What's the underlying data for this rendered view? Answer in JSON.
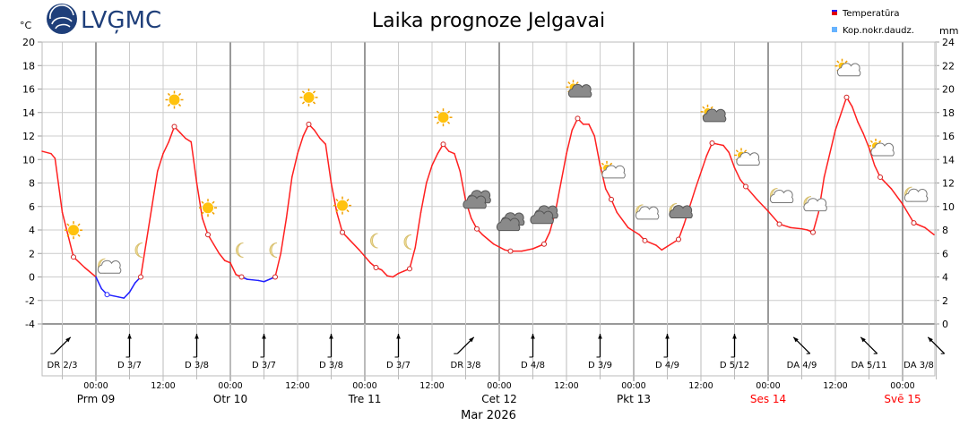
{
  "chart_data": {
    "type": "line",
    "title": "Laika prognoze Jelgavai",
    "logo_text": "LVĢMC",
    "y_left_unit": "°C",
    "y_right_unit": "mm",
    "ylim": [
      -4,
      20
    ],
    "ylim_right": [
      0,
      24
    ],
    "y_ticks": [
      -4,
      -2,
      0,
      2,
      4,
      6,
      8,
      10,
      12,
      14,
      16,
      18,
      20
    ],
    "y_right_ticks": [
      0,
      2,
      4,
      6,
      8,
      10,
      12,
      14,
      16,
      18,
      20,
      22,
      24
    ],
    "grid": true,
    "legend_position": "top-right",
    "legend": [
      {
        "label": "Temperatūra",
        "color": "#e00000"
      },
      {
        "label": "Kop.nokr.daudz.",
        "color": "#66b3ff"
      }
    ],
    "colors": {
      "temp_positive": "#ff2020",
      "temp_negative": "#2020ff"
    },
    "x_unit_note": "hours relative to Mar 9 00:00",
    "temperature": [
      [
        -9.6,
        10.7
      ],
      [
        -8,
        10.5
      ],
      [
        -7.3,
        10.1
      ],
      [
        -6,
        5.5
      ],
      [
        -4,
        1.7
      ],
      [
        -2,
        0.8
      ],
      [
        0,
        0
      ],
      [
        1,
        -1
      ],
      [
        2,
        -1.5
      ],
      [
        4,
        -1.7
      ],
      [
        5,
        -1.8
      ],
      [
        6,
        -1.3
      ],
      [
        7,
        -0.5
      ],
      [
        8,
        0
      ],
      [
        9,
        3
      ],
      [
        10,
        6
      ],
      [
        11,
        9
      ],
      [
        12,
        10.5
      ],
      [
        13,
        11.5
      ],
      [
        14,
        12.8
      ],
      [
        15,
        12.3
      ],
      [
        16,
        11.8
      ],
      [
        17,
        11.5
      ],
      [
        18,
        8
      ],
      [
        19,
        5
      ],
      [
        20,
        3.6
      ],
      [
        21,
        2.8
      ],
      [
        22,
        2
      ],
      [
        23,
        1.4
      ],
      [
        24,
        1.2
      ],
      [
        25,
        0.2
      ],
      [
        26,
        0
      ],
      [
        27,
        -0.2
      ],
      [
        29,
        -0.3
      ],
      [
        30,
        -0.4
      ],
      [
        31,
        -0.2
      ],
      [
        32,
        0
      ],
      [
        33,
        2
      ],
      [
        34,
        5
      ],
      [
        35,
        8.5
      ],
      [
        36,
        10.5
      ],
      [
        37,
        12
      ],
      [
        38,
        13
      ],
      [
        39,
        12.5
      ],
      [
        40,
        11.8
      ],
      [
        41,
        11.3
      ],
      [
        42,
        8
      ],
      [
        43,
        5.5
      ],
      [
        44,
        3.8
      ],
      [
        45,
        3.3
      ],
      [
        47,
        2.3
      ],
      [
        49,
        1.2
      ],
      [
        50,
        0.8
      ],
      [
        51,
        0.6
      ],
      [
        52,
        0.1
      ],
      [
        53,
        0
      ],
      [
        54,
        0.3
      ],
      [
        55,
        0.5
      ],
      [
        56,
        0.7
      ],
      [
        57,
        2.5
      ],
      [
        58,
        5.5
      ],
      [
        59,
        8
      ],
      [
        60,
        9.5
      ],
      [
        61,
        10.5
      ],
      [
        62,
        11.3
      ],
      [
        63,
        10.7
      ],
      [
        64,
        10.5
      ],
      [
        65,
        9
      ],
      [
        66,
        6.5
      ],
      [
        67,
        5
      ],
      [
        68,
        4.1
      ],
      [
        69,
        3.6
      ],
      [
        71,
        2.8
      ],
      [
        73,
        2.3
      ],
      [
        74,
        2.2
      ],
      [
        76,
        2.2
      ],
      [
        78,
        2.4
      ],
      [
        80,
        2.8
      ],
      [
        81,
        3.8
      ],
      [
        82,
        5.5
      ],
      [
        83,
        8
      ],
      [
        84,
        10.5
      ],
      [
        85,
        12.5
      ],
      [
        86,
        13.5
      ],
      [
        87,
        13
      ],
      [
        88,
        13
      ],
      [
        89,
        12
      ],
      [
        90,
        9.5
      ],
      [
        91,
        7.5
      ],
      [
        92,
        6.6
      ],
      [
        93,
        5.5
      ],
      [
        95,
        4.2
      ],
      [
        97,
        3.6
      ],
      [
        98,
        3.1
      ],
      [
        100,
        2.7
      ],
      [
        101,
        2.3
      ],
      [
        102,
        2.6
      ],
      [
        104,
        3.2
      ],
      [
        105,
        4.5
      ],
      [
        107,
        7.5
      ],
      [
        109,
        10.3
      ],
      [
        110,
        11.4
      ],
      [
        111,
        11.3
      ],
      [
        112,
        11.2
      ],
      [
        113,
        10.6
      ],
      [
        114,
        9.3
      ],
      [
        115,
        8.3
      ],
      [
        116,
        7.7
      ],
      [
        118,
        6.6
      ],
      [
        120,
        5.6
      ],
      [
        122,
        4.5
      ],
      [
        124,
        4.2
      ],
      [
        126,
        4.1
      ],
      [
        127,
        4
      ],
      [
        128,
        3.8
      ],
      [
        129,
        5.5
      ],
      [
        130,
        8.5
      ],
      [
        132,
        12.5
      ],
      [
        134,
        15.3
      ],
      [
        135,
        14.5
      ],
      [
        136,
        13.2
      ],
      [
        137,
        12.2
      ],
      [
        138,
        11
      ],
      [
        139,
        9.5
      ],
      [
        140,
        8.5
      ],
      [
        142,
        7.5
      ],
      [
        144,
        6.2
      ],
      [
        146,
        4.6
      ],
      [
        148,
        4.2
      ],
      [
        149.6,
        3.6
      ]
    ],
    "markers": [
      {
        "t": -4,
        "temp": 1.7,
        "icon": "sun"
      },
      {
        "t": 2,
        "temp": -1.5,
        "icon": "moon-cloud"
      },
      {
        "t": 8,
        "temp": 0,
        "icon": "moon"
      },
      {
        "t": 14,
        "temp": 12.8,
        "icon": "sun"
      },
      {
        "t": 20,
        "temp": 3.6,
        "icon": "sun"
      },
      {
        "t": 26,
        "temp": 0,
        "icon": "moon"
      },
      {
        "t": 32,
        "temp": 0,
        "icon": "moon"
      },
      {
        "t": 38,
        "temp": 13,
        "icon": "sun"
      },
      {
        "t": 44,
        "temp": 3.8,
        "icon": "sun"
      },
      {
        "t": 50,
        "temp": 0.8,
        "icon": "moon"
      },
      {
        "t": 56,
        "temp": 0.7,
        "icon": "moon"
      },
      {
        "t": 62,
        "temp": 11.3,
        "icon": "sun"
      },
      {
        "t": 68,
        "temp": 4.1,
        "icon": "overcast"
      },
      {
        "t": 74,
        "temp": 2.2,
        "icon": "overcast"
      },
      {
        "t": 80,
        "temp": 2.8,
        "icon": "overcast"
      },
      {
        "t": 86,
        "temp": 13.5,
        "icon": "sun-darkcloud"
      },
      {
        "t": 92,
        "temp": 6.6,
        "icon": "sun-cloud"
      },
      {
        "t": 98,
        "temp": 3.1,
        "icon": "moon-cloud"
      },
      {
        "t": 104,
        "temp": 3.2,
        "icon": "moon-darkcloud"
      },
      {
        "t": 110,
        "temp": 11.4,
        "icon": "sun-darkcloud"
      },
      {
        "t": 116,
        "temp": 7.7,
        "icon": "sun-cloud"
      },
      {
        "t": 122,
        "temp": 4.5,
        "icon": "moon-cloud"
      },
      {
        "t": 128,
        "temp": 3.8,
        "icon": "moon-cloud"
      },
      {
        "t": 134,
        "temp": 15.3,
        "icon": "sun-cloud"
      },
      {
        "t": 140,
        "temp": 8.5,
        "icon": "sun-cloud"
      },
      {
        "t": 146,
        "temp": 4.6,
        "icon": "moon-cloud"
      }
    ],
    "wind": [
      {
        "t": -6,
        "dir": "DR",
        "label": "DR 2/3"
      },
      {
        "t": 6,
        "dir": "D",
        "label": "D 3/7"
      },
      {
        "t": 18,
        "dir": "D",
        "label": "D 3/8"
      },
      {
        "t": 30,
        "dir": "D",
        "label": "D 3/7"
      },
      {
        "t": 42,
        "dir": "D",
        "label": "D 3/8"
      },
      {
        "t": 54,
        "dir": "D",
        "label": "D 3/7"
      },
      {
        "t": 66,
        "dir": "DR",
        "label": "DR 3/8"
      },
      {
        "t": 78,
        "dir": "D",
        "label": "D 4/8"
      },
      {
        "t": 90,
        "dir": "D",
        "label": "D 3/9"
      },
      {
        "t": 102,
        "dir": "D",
        "label": "D 4/9"
      },
      {
        "t": 114,
        "dir": "D",
        "label": "D 5/12"
      },
      {
        "t": 126,
        "dir": "DA",
        "label": "DA 4/9"
      },
      {
        "t": 138,
        "dir": "DA",
        "label": "DA 5/11"
      },
      {
        "t": 150,
        "dir": "DA",
        "label": "DA 3/8"
      }
    ],
    "x_tick_labels": [
      {
        "t": 0,
        "label": "00:00"
      },
      {
        "t": 12,
        "label": "12:00"
      },
      {
        "t": 24,
        "label": "00:00"
      },
      {
        "t": 36,
        "label": "12:00"
      },
      {
        "t": 48,
        "label": "00:00"
      },
      {
        "t": 60,
        "label": "12:00"
      },
      {
        "t": 72,
        "label": "00:00"
      },
      {
        "t": 84,
        "label": "12:00"
      },
      {
        "t": 96,
        "label": "00:00"
      },
      {
        "t": 108,
        "label": "12:00"
      },
      {
        "t": 120,
        "label": "00:00"
      },
      {
        "t": 132,
        "label": "12:00"
      },
      {
        "t": 144,
        "label": "00:00"
      }
    ],
    "day_labels": [
      {
        "t": 0,
        "label": "Prm 09",
        "weekend": false
      },
      {
        "t": 24,
        "label": "Otr 10",
        "weekend": false
      },
      {
        "t": 48,
        "label": "Tre 11",
        "weekend": false
      },
      {
        "t": 72,
        "label": "Cet 12",
        "weekend": false
      },
      {
        "t": 96,
        "label": "Pkt 13",
        "weekend": false
      },
      {
        "t": 120,
        "label": "Ses 14",
        "weekend": true
      },
      {
        "t": 144,
        "label": "Svē 15",
        "weekend": true
      }
    ],
    "month_label": "Mar 2026",
    "precipitation": []
  }
}
